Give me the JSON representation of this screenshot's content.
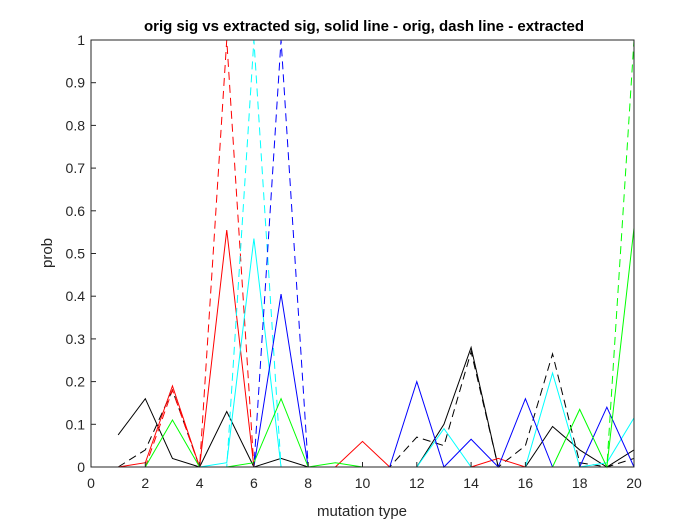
{
  "chart_data": {
    "type": "line",
    "title": "orig sig vs extracted sig, solid line - orig, dash line - extracted",
    "xlabel": "mutation type",
    "ylabel": "prob",
    "xlim": [
      0,
      20
    ],
    "ylim": [
      0,
      1
    ],
    "xticks": [
      0,
      2,
      4,
      6,
      8,
      10,
      12,
      14,
      16,
      18,
      20
    ],
    "yticks": [
      0,
      0.1,
      0.2,
      0.3,
      0.4,
      0.5,
      0.6,
      0.7,
      0.8,
      0.9,
      1
    ],
    "grid": false,
    "x": [
      1,
      2,
      3,
      4,
      5,
      6,
      7,
      8,
      9,
      10,
      11,
      12,
      13,
      14,
      15,
      16,
      17,
      18,
      19,
      20
    ],
    "series": [
      {
        "color": "#000000",
        "style": "solid",
        "values": [
          0.075,
          0.16,
          0.02,
          0.0,
          0.13,
          0.0,
          0.02,
          0.0,
          0.0,
          0.0,
          0.0,
          0.0,
          0.1,
          0.28,
          0.0,
          0.0,
          0.095,
          0.04,
          0.0,
          0.04
        ]
      },
      {
        "color": "#000000",
        "style": "dashed",
        "values": [
          0.0,
          0.04,
          0.18,
          0.0,
          0.0,
          0.0,
          0.0,
          0.0,
          0.0,
          0.0,
          0.0,
          0.07,
          0.05,
          0.27,
          0.0,
          0.05,
          0.265,
          0.01,
          0.0,
          0.02
        ]
      },
      {
        "color": "#ff0000",
        "style": "solid",
        "values": [
          0.0,
          0.01,
          0.19,
          0.0,
          0.555,
          0.0,
          0.0,
          0.0,
          0.0,
          0.06,
          0.0,
          0.0,
          0.0,
          0.0,
          0.02,
          0.0,
          0.0,
          0.0,
          0.0,
          0.0
        ]
      },
      {
        "color": "#ff0000",
        "style": "dashed",
        "values": [
          0.0,
          0.0,
          0.18,
          0.0,
          1.0,
          0.0,
          0.0,
          0.0,
          0.0,
          0.0,
          0.0,
          0.0,
          0.0,
          0.0,
          0.0,
          0.0,
          0.0,
          0.0,
          0.0,
          0.0
        ]
      },
      {
        "color": "#00ffff",
        "style": "solid",
        "values": [
          0.0,
          0.0,
          0.0,
          0.0,
          0.01,
          0.535,
          0.0,
          0.0,
          0.0,
          0.0,
          0.0,
          0.0,
          0.09,
          0.0,
          0.0,
          0.0,
          0.22,
          0.0,
          0.01,
          0.115
        ]
      },
      {
        "color": "#00ffff",
        "style": "dashed",
        "values": [
          0.0,
          0.0,
          0.0,
          0.0,
          0.0,
          1.0,
          0.0,
          0.0,
          0.0,
          0.0,
          0.0,
          0.0,
          0.0,
          0.0,
          0.0,
          0.0,
          0.0,
          0.0,
          0.0,
          0.0
        ]
      },
      {
        "color": "#0000ff",
        "style": "solid",
        "values": [
          0.0,
          0.0,
          0.0,
          0.0,
          0.0,
          0.0,
          0.405,
          0.0,
          0.0,
          0.0,
          0.0,
          0.2,
          0.0,
          0.065,
          0.0,
          0.16,
          0.0,
          0.0,
          0.14,
          0.0
        ]
      },
      {
        "color": "#0000ff",
        "style": "dashed",
        "values": [
          0.0,
          0.0,
          0.0,
          0.0,
          0.0,
          0.0,
          1.0,
          0.0,
          0.0,
          0.0,
          0.0,
          0.0,
          0.0,
          0.0,
          0.0,
          0.0,
          0.0,
          0.0,
          0.0,
          0.0
        ]
      },
      {
        "color": "#00ff00",
        "style": "solid",
        "values": [
          0.0,
          0.0,
          0.11,
          0.0,
          0.0,
          0.01,
          0.16,
          0.0,
          0.01,
          0.0,
          0.0,
          0.0,
          0.0,
          0.0,
          0.0,
          0.0,
          0.0,
          0.135,
          0.0,
          0.56
        ]
      },
      {
        "color": "#00ff00",
        "style": "dashed",
        "values": [
          0.0,
          0.0,
          0.0,
          0.0,
          0.0,
          0.0,
          0.0,
          0.0,
          0.0,
          0.0,
          0.0,
          0.0,
          0.0,
          0.0,
          0.0,
          0.0,
          0.0,
          0.0,
          0.0,
          1.0
        ]
      }
    ]
  }
}
